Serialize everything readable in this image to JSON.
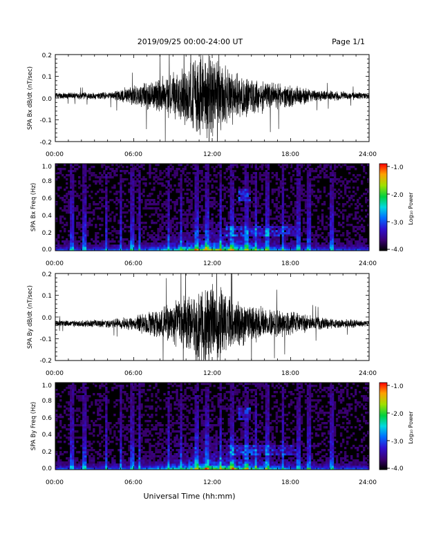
{
  "header": {
    "title": "2019/09/25  00:00-24:00 UT",
    "page": "Page 1/1"
  },
  "xlabel": "Universal Time (hh:mm)",
  "x_tick_labels": [
    "00:00",
    "06:00",
    "12:00",
    "18:00",
    "24:00"
  ],
  "colorbar": {
    "label": "Log₁₀ Power",
    "tick_labels": [
      "-1.0",
      "-2.0",
      "-3.0",
      "-4.0"
    ],
    "range": [
      -4.0,
      -1.0
    ]
  },
  "chart_data": [
    {
      "type": "line",
      "title": "",
      "ylabel": "SPA Bx dB/dt (nT/sec)",
      "xlim": [
        0,
        24
      ],
      "ylim": [
        -0.2,
        0.2
      ],
      "y_tick_labels": [
        "0.2",
        "0.1",
        "0.0",
        "-0.1",
        "-0.2"
      ],
      "baseline": 0.01,
      "amplitude_envelope_hours": [
        0,
        4,
        6,
        8,
        10,
        11,
        12,
        13,
        14,
        16,
        18,
        20,
        24
      ],
      "amplitude_envelope_values": [
        0.015,
        0.02,
        0.05,
        0.09,
        0.15,
        0.22,
        0.22,
        0.16,
        0.12,
        0.08,
        0.06,
        0.03,
        0.015
      ]
    },
    {
      "type": "heatmap",
      "title": "",
      "ylabel": "SPA Bx Freq (Hz)",
      "xlim": [
        0,
        24
      ],
      "ylim": [
        0.0,
        1.0
      ],
      "y_tick_labels": [
        "1.0",
        "0.8",
        "0.6",
        "0.4",
        "0.2",
        "0.0"
      ],
      "z_label": "Log₁₀ Power",
      "z_range": [
        -4.0,
        -1.0
      ]
    },
    {
      "type": "line",
      "title": "",
      "ylabel": "SPA By dB/dt (nT/sec)",
      "xlim": [
        0,
        24
      ],
      "ylim": [
        -0.2,
        0.2
      ],
      "y_tick_labels": [
        "0.2",
        "0.1",
        "0.0",
        "-0.1",
        "-0.2"
      ],
      "baseline": -0.03,
      "amplitude_envelope_hours": [
        0,
        4,
        6,
        8,
        10,
        11,
        12,
        13,
        14,
        16,
        18,
        20,
        24
      ],
      "amplitude_envelope_values": [
        0.015,
        0.02,
        0.04,
        0.08,
        0.14,
        0.22,
        0.22,
        0.17,
        0.12,
        0.08,
        0.06,
        0.035,
        0.015
      ]
    },
    {
      "type": "heatmap",
      "title": "",
      "ylabel": "SPA By Freq (Hz)",
      "xlim": [
        0,
        24
      ],
      "ylim": [
        0.0,
        1.0
      ],
      "y_tick_labels": [
        "1.0",
        "0.8",
        "0.6",
        "0.4",
        "0.2",
        "0.0"
      ],
      "z_label": "Log₁₀ Power",
      "z_range": [
        -4.0,
        -1.0
      ]
    }
  ]
}
